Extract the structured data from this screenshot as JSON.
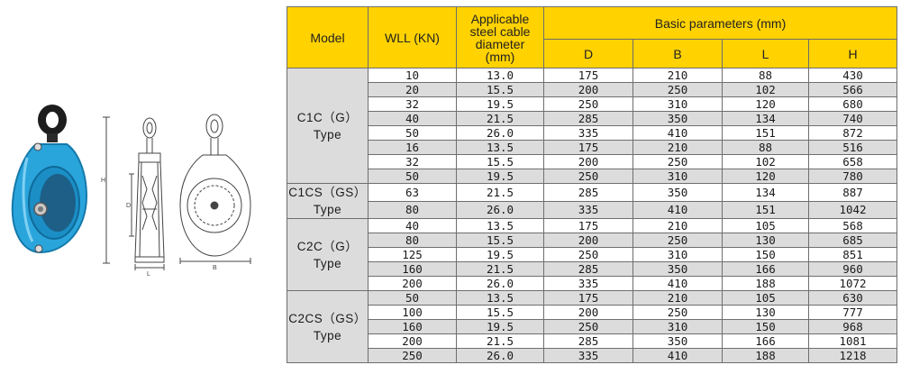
{
  "table": {
    "headers": {
      "model": "Model",
      "wll": "WLL (KN)",
      "cable_lines": [
        "Applicable",
        "steel cable",
        "diameter",
        "(mm)"
      ],
      "basic": "Basic parameters (mm)",
      "d": "D",
      "b": "B",
      "l": "L",
      "h": "H"
    },
    "groups": [
      {
        "model_lines": [
          "C1C（G）",
          "Type"
        ],
        "rows": [
          [
            "10",
            "13.0",
            "175",
            "210",
            "88",
            "430"
          ],
          [
            "20",
            "15.5",
            "200",
            "250",
            "102",
            "566"
          ],
          [
            "32",
            "19.5",
            "250",
            "310",
            "120",
            "680"
          ],
          [
            "40",
            "21.5",
            "285",
            "350",
            "134",
            "740"
          ],
          [
            "50",
            "26.0",
            "335",
            "410",
            "151",
            "872"
          ],
          [
            "16",
            "13.5",
            "175",
            "210",
            "88",
            "516"
          ],
          [
            "32",
            "15.5",
            "200",
            "250",
            "102",
            "658"
          ],
          [
            "50",
            "19.5",
            "250",
            "310",
            "120",
            "780"
          ]
        ]
      },
      {
        "model_lines": [
          "C1CS（GS）",
          "Type"
        ],
        "rows": [
          [
            "63",
            "21.5",
            "285",
            "350",
            "134",
            "887"
          ],
          [
            "80",
            "26.0",
            "335",
            "410",
            "151",
            "1042"
          ]
        ]
      },
      {
        "model_lines": [
          "C2C（G）",
          "Type"
        ],
        "rows": [
          [
            "40",
            "13.5",
            "175",
            "210",
            "105",
            "568"
          ],
          [
            "80",
            "15.5",
            "200",
            "250",
            "130",
            "685"
          ],
          [
            "125",
            "19.5",
            "250",
            "310",
            "150",
            "851"
          ],
          [
            "160",
            "21.5",
            "285",
            "350",
            "166",
            "960"
          ],
          [
            "200",
            "26.0",
            "335",
            "410",
            "188",
            "1072"
          ]
        ]
      },
      {
        "model_lines": [
          "C2CS（GS）",
          "Type"
        ],
        "rows": [
          [
            "50",
            "13.5",
            "175",
            "210",
            "105",
            "630"
          ],
          [
            "100",
            "15.5",
            "200",
            "250",
            "130",
            "777"
          ],
          [
            "160",
            "19.5",
            "250",
            "310",
            "150",
            "968"
          ],
          [
            "200",
            "21.5",
            "285",
            "350",
            "166",
            "1081"
          ],
          [
            "250",
            "26.0",
            "335",
            "410",
            "188",
            "1218"
          ]
        ]
      }
    ]
  },
  "drawing_labels": {
    "h": "H",
    "d": "D",
    "l": "L",
    "b": "B"
  },
  "colors": {
    "header_yellow": "#ffd200",
    "row_gray": "#dcdcdc",
    "pulley_blue": "#2aa5dc"
  }
}
